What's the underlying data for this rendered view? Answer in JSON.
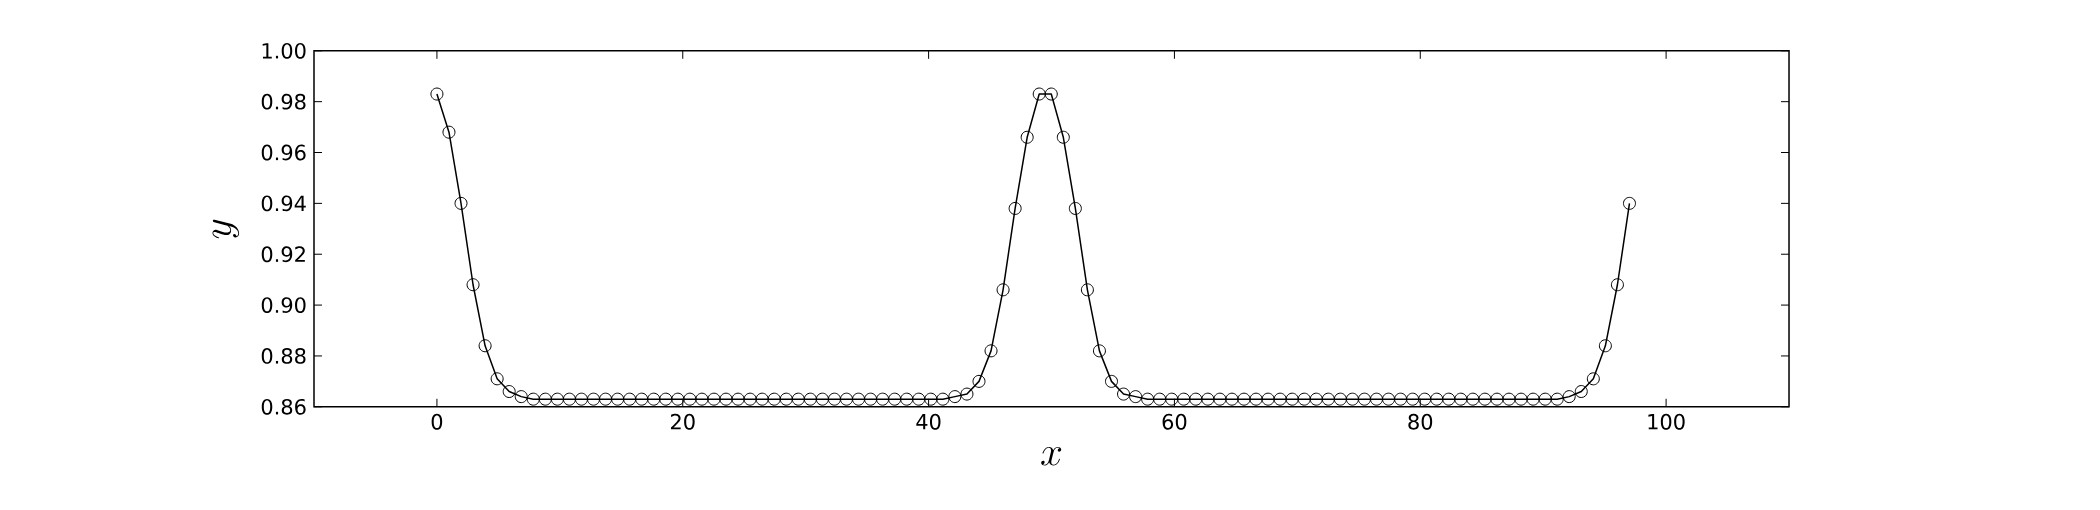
{
  "chart_data": {
    "type": "line",
    "xlabel": "x",
    "ylabel": "y",
    "x": [
      0,
      0.98,
      1.96,
      2.94,
      3.92,
      4.9,
      5.88,
      6.86,
      7.84,
      8.82,
      9.8,
      10.78,
      11.76,
      12.74,
      13.72,
      14.7,
      15.68,
      16.66,
      17.64,
      18.62,
      19.6,
      20.58,
      21.56,
      22.54,
      23.52,
      24.5,
      25.48,
      26.46,
      27.44,
      28.42,
      29.4,
      30.38,
      31.36,
      32.34,
      33.32,
      34.3,
      35.28,
      36.26,
      37.24,
      38.22,
      39.2,
      40.18,
      41.16,
      42.14,
      43.12,
      44.1,
      45.08,
      46.06,
      47.04,
      48.02,
      49,
      49.98,
      50.96,
      51.94,
      52.92,
      53.9,
      54.88,
      55.86,
      56.84,
      57.82,
      58.8,
      59.78,
      60.76,
      61.74,
      62.72,
      63.7,
      64.68,
      65.66,
      66.64,
      67.62,
      68.6,
      69.58,
      70.56,
      71.54,
      72.52,
      73.5,
      74.48,
      75.46,
      76.44,
      77.42,
      78.4,
      79.38,
      80.36,
      81.34,
      82.32,
      83.3,
      84.28,
      85.26,
      86.24,
      87.22,
      88.2,
      89.18,
      90.16,
      91.14,
      92.12,
      93.1,
      94.08,
      95.06,
      96.04,
      97.02
    ],
    "series": [
      {
        "color": "#000000",
        "values": [
          0.983,
          0.968,
          0.94,
          0.908,
          0.884,
          0.871,
          0.866,
          0.864,
          0.863,
          0.863,
          0.863,
          0.863,
          0.863,
          0.863,
          0.863,
          0.863,
          0.863,
          0.863,
          0.863,
          0.863,
          0.863,
          0.863,
          0.863,
          0.863,
          0.863,
          0.863,
          0.863,
          0.863,
          0.863,
          0.863,
          0.863,
          0.863,
          0.863,
          0.863,
          0.863,
          0.863,
          0.863,
          0.863,
          0.863,
          0.863,
          0.863,
          0.863,
          0.863,
          0.864,
          0.865,
          0.87,
          0.882,
          0.906,
          0.938,
          0.966,
          0.983,
          0.983,
          0.966,
          0.938,
          0.906,
          0.882,
          0.87,
          0.865,
          0.864,
          0.863,
          0.863,
          0.863,
          0.863,
          0.863,
          0.863,
          0.863,
          0.863,
          0.863,
          0.863,
          0.863,
          0.863,
          0.863,
          0.863,
          0.863,
          0.863,
          0.863,
          0.863,
          0.863,
          0.863,
          0.863,
          0.863,
          0.863,
          0.863,
          0.863,
          0.863,
          0.863,
          0.863,
          0.863,
          0.863,
          0.863,
          0.863,
          0.863,
          0.863,
          0.863,
          0.864,
          0.866,
          0.871,
          0.884,
          0.908,
          0.94
        ]
      }
    ],
    "xlim": [
      -10,
      110
    ],
    "ylim": [
      0.86,
      1.0
    ],
    "xticks": [
      0,
      20,
      40,
      60,
      80,
      100
    ],
    "yticks": [
      {
        "value": 0.86,
        "label": "0.86"
      },
      {
        "value": 0.88,
        "label": "0.88"
      },
      {
        "value": 0.9,
        "label": "0.90"
      },
      {
        "value": 0.92,
        "label": "0.92"
      },
      {
        "value": 0.94,
        "label": "0.94"
      },
      {
        "value": 0.96,
        "label": "0.96"
      },
      {
        "value": 0.98,
        "label": "0.98"
      },
      {
        "value": 1.0,
        "label": "1.00"
      }
    ],
    "marker": "circle",
    "line_style": "solid"
  }
}
